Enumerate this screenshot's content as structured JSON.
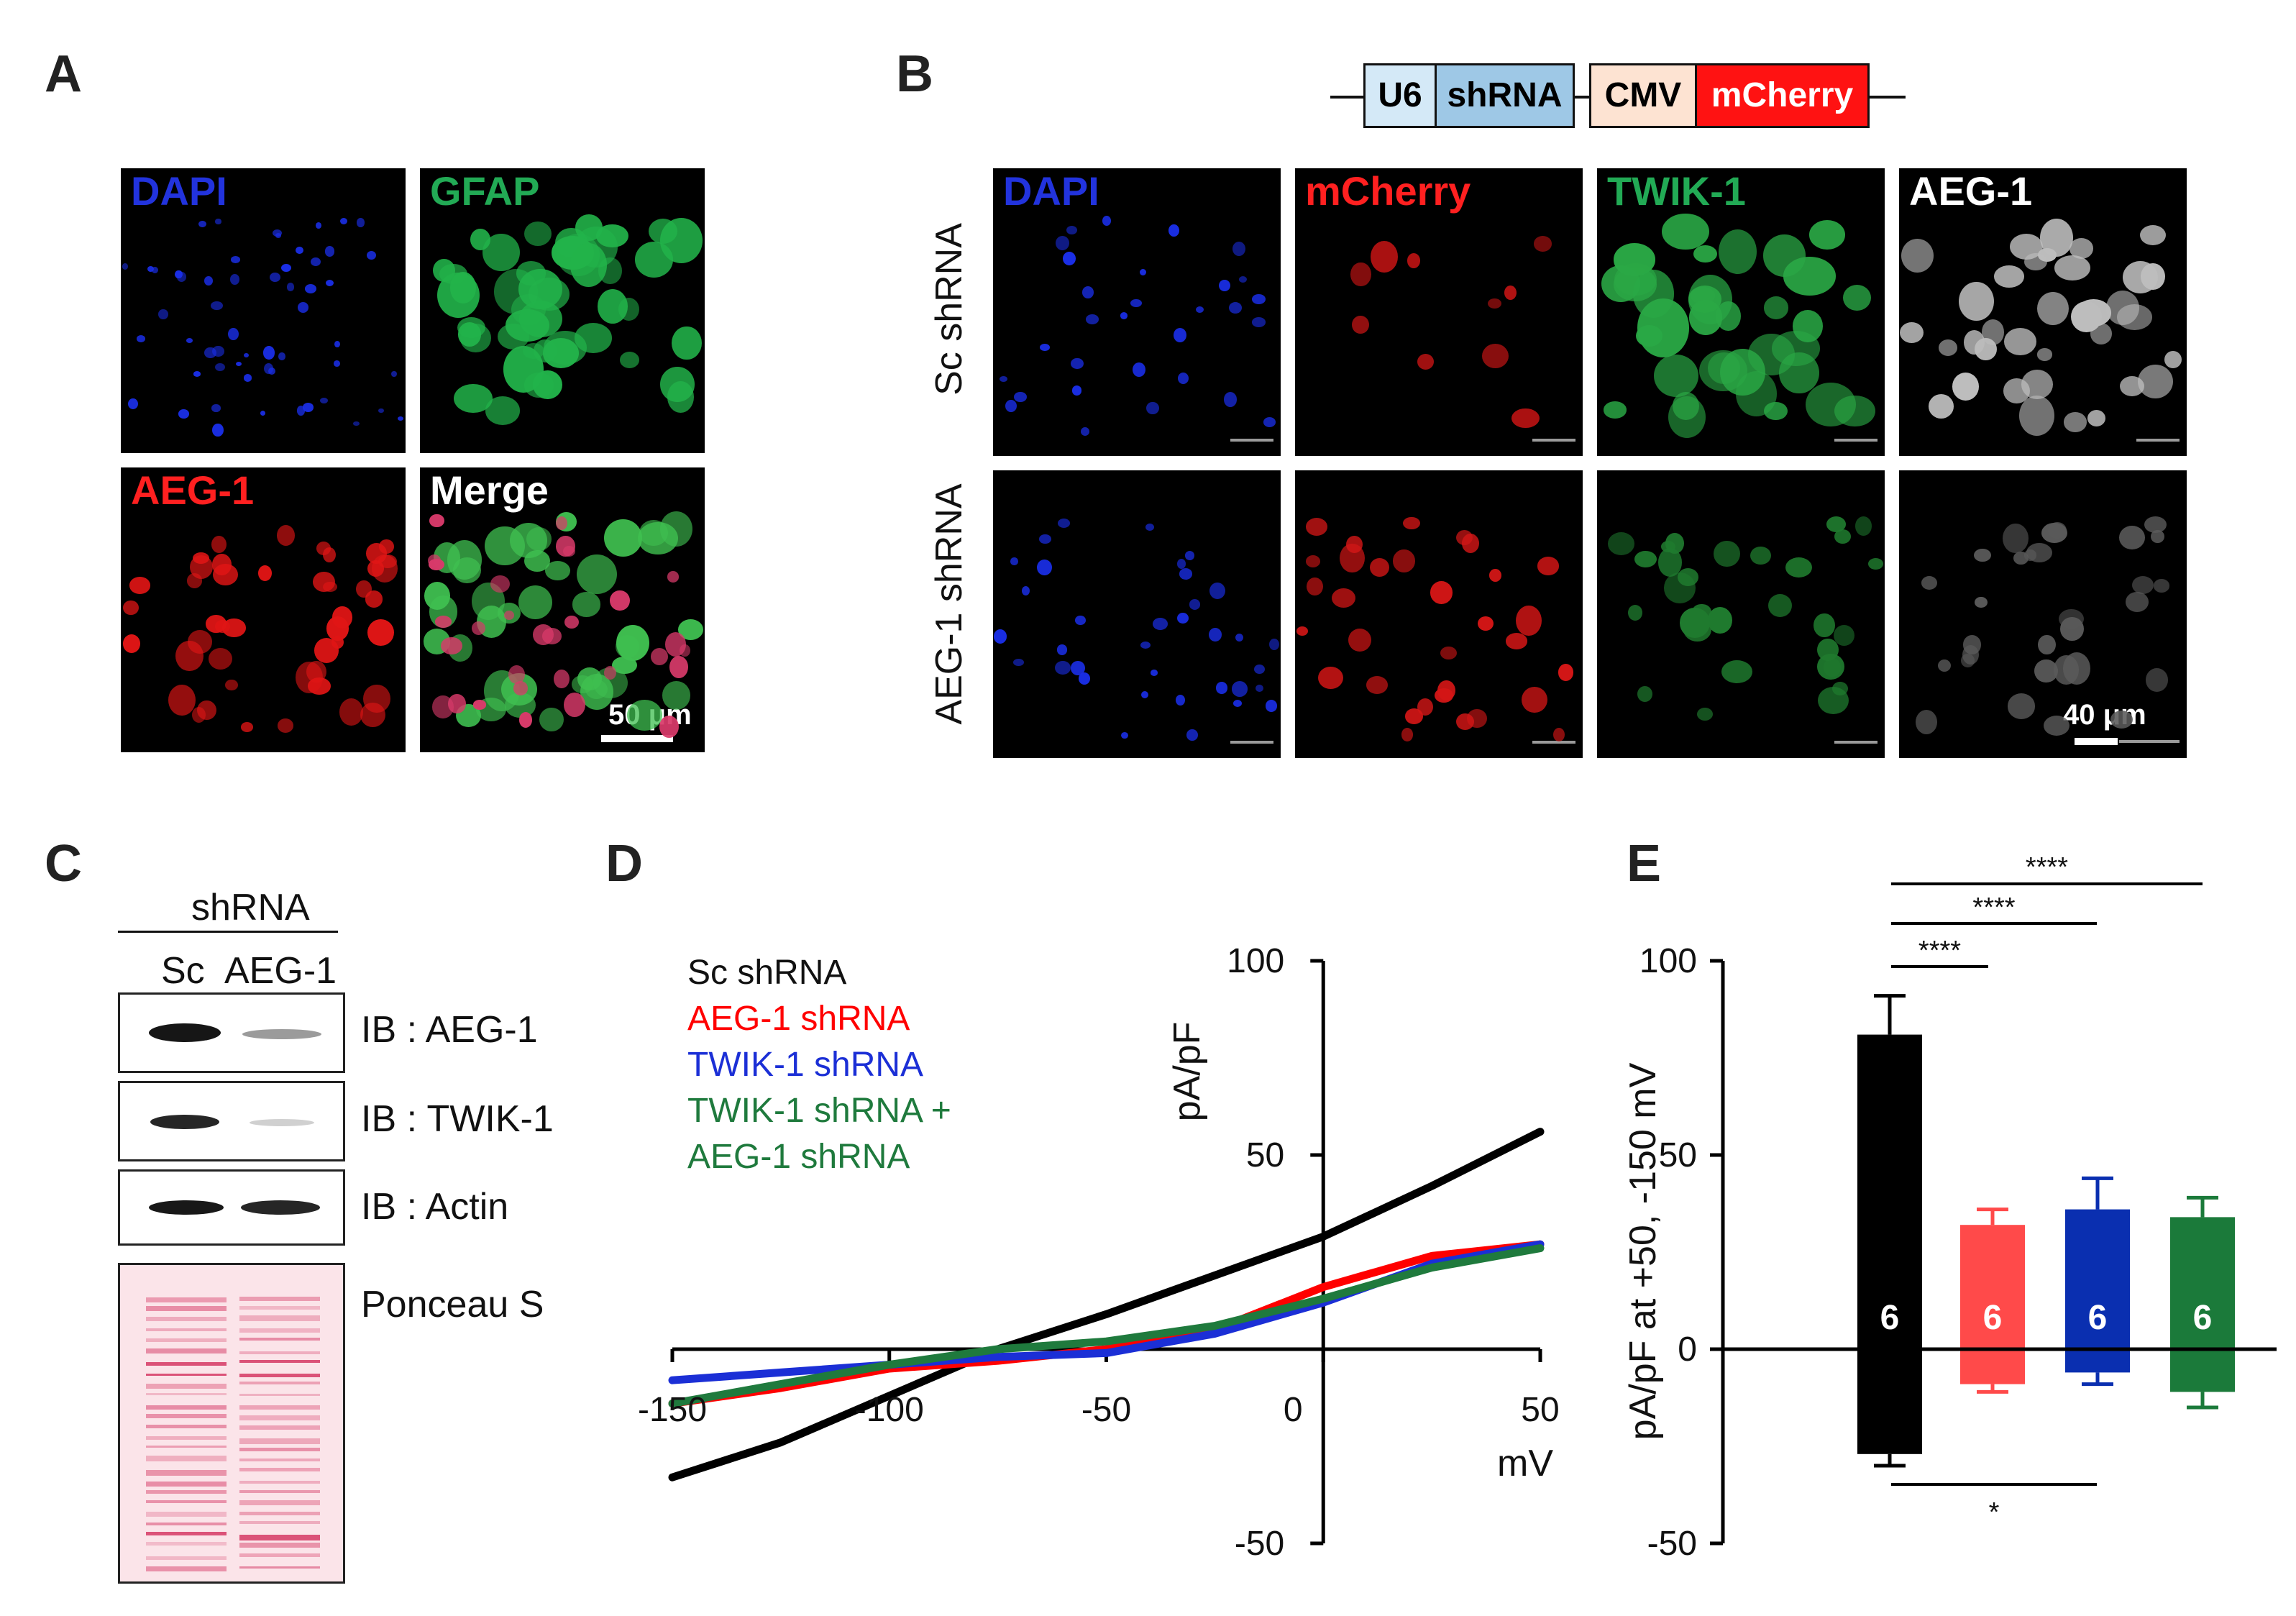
{
  "panels": {
    "A": "A",
    "B": "B",
    "C": "C",
    "D": "D",
    "E": "E"
  },
  "panel_a": {
    "labels": [
      "DAPI",
      "GFAP",
      "AEG-1",
      "Merge"
    ],
    "scale": "50 μm"
  },
  "panel_b": {
    "construct": [
      "U6",
      "shRNA",
      "CMV",
      "mCherry"
    ],
    "col_labels": [
      "DAPI",
      "mCherry",
      "TWIK-1",
      "AEG-1"
    ],
    "row_labels": [
      "Sc shRNA",
      "AEG-1 shRNA"
    ],
    "scale": "40 μm"
  },
  "panel_c": {
    "header": "shRNA",
    "lanes": [
      "Sc",
      "AEG-1"
    ],
    "blots": [
      "IB : AEG-1",
      "IB : TWIK-1",
      "IB : Actin",
      "Ponceau S"
    ]
  },
  "chart_data": [
    {
      "type": "line",
      "xlabel": "mV",
      "ylabel": "pA/pF",
      "xlim": [
        -150,
        50
      ],
      "ylim": [
        -50,
        100
      ],
      "xticks": [
        "-150",
        "-100",
        "-50",
        "0",
        "50"
      ],
      "yticks": [
        "100",
        "50",
        "-50"
      ],
      "legend": [
        "Sc shRNA",
        "AEG-1 shRNA",
        "TWIK-1 shRNA",
        "TWIK-1 shRNA +",
        "AEG-1 shRNA"
      ],
      "series": [
        {
          "name": "Sc shRNA",
          "color": "#000000",
          "x": [
            -150,
            -125,
            -100,
            -75,
            -50,
            -25,
            0,
            25,
            50
          ],
          "y": [
            -33,
            -24,
            -12,
            0,
            9,
            19,
            29,
            42,
            56
          ]
        },
        {
          "name": "AEG-1 shRNA",
          "color": "#ff0000",
          "x": [
            -150,
            -125,
            -100,
            -75,
            -50,
            -25,
            0,
            25,
            50
          ],
          "y": [
            -14,
            -10,
            -5,
            -3,
            0,
            5,
            16,
            24,
            27
          ]
        },
        {
          "name": "TWIK-1 shRNA",
          "color": "#1b2fd6",
          "x": [
            -150,
            -125,
            -100,
            -75,
            -50,
            -25,
            0,
            25,
            50
          ],
          "y": [
            -8,
            -6,
            -4,
            -2,
            -1,
            4,
            12,
            22,
            27
          ]
        },
        {
          "name": "TWIK-1 shRNA + AEG-1 shRNA",
          "color": "#1f7a3d",
          "x": [
            -150,
            -125,
            -100,
            -75,
            -50,
            -25,
            0,
            25,
            50
          ],
          "y": [
            -14,
            -9,
            -4,
            0,
            2,
            6,
            13,
            21,
            26
          ]
        }
      ]
    },
    {
      "type": "bar",
      "ylabel": "pA/pF at +50, -150 mV",
      "ylim": [
        -50,
        100
      ],
      "yticks": [
        "100",
        "50",
        "0",
        "-50"
      ],
      "categories": [
        "Sc shRNA",
        "AEG-1 shRNA",
        "TWIK-1 shRNA",
        "TWIK-1 shRNA + AEG-1 shRNA"
      ],
      "colors": [
        "#000000",
        "#ff4a4a",
        "#0a2fb0",
        "#1b7a3a"
      ],
      "pos": [
        81,
        32,
        36,
        34
      ],
      "pos_err": [
        91,
        36,
        44,
        39
      ],
      "neg": [
        -27,
        -9,
        -6,
        -11
      ],
      "neg_err": [
        -30,
        -11,
        -9,
        -15
      ],
      "n": [
        "6",
        "6",
        "6",
        "6"
      ],
      "sig": [
        "****",
        "****",
        "****",
        "*"
      ]
    }
  ]
}
